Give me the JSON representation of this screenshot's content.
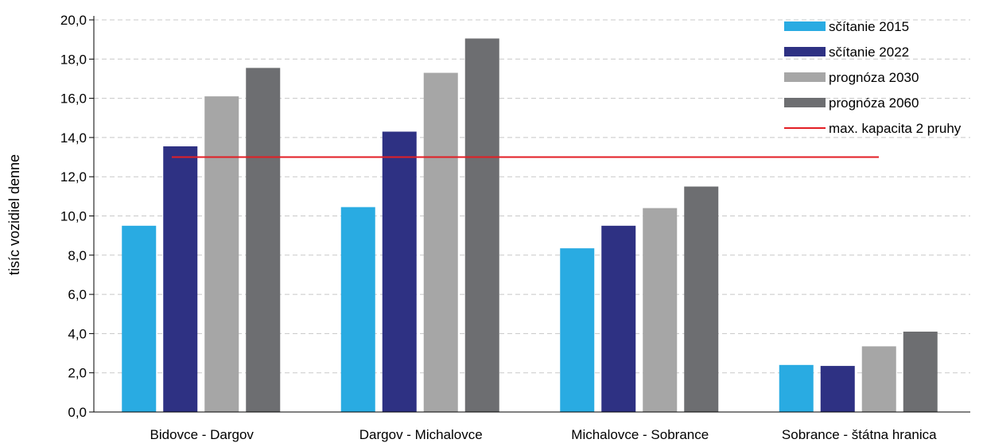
{
  "chart_data": {
    "type": "bar",
    "ylabel": "tisíc vozidiel denne",
    "xlabel": "",
    "ylim": [
      0,
      20
    ],
    "yticks": [
      "0,0",
      "2,0",
      "4,0",
      "6,0",
      "8,0",
      "10,0",
      "12,0",
      "14,0",
      "16,0",
      "18,0",
      "20,0"
    ],
    "categories": [
      "Bidovce - Dargov",
      "Dargov - Michalovce",
      "Michalovce - Sobrance",
      "Sobrance - štátna hranica"
    ],
    "series": [
      {
        "name": "sčítanie 2015",
        "color": "#29abe2",
        "values": [
          9.5,
          10.45,
          8.35,
          2.4
        ]
      },
      {
        "name": "sčítanie 2022",
        "color": "#2e3183",
        "values": [
          13.55,
          14.3,
          9.5,
          2.35
        ]
      },
      {
        "name": "prognóza 2030",
        "color": "#a6a6a6",
        "values": [
          16.1,
          17.3,
          10.4,
          3.35
        ]
      },
      {
        "name": "prognóza 2060",
        "color": "#6d6e71",
        "values": [
          17.55,
          19.05,
          11.5,
          4.1
        ]
      }
    ],
    "reference_line": {
      "name": "max. kapacita 2 pruhy",
      "value": 13.0,
      "color": "#e31e24"
    },
    "grid": true,
    "legend_position": "top-right"
  }
}
